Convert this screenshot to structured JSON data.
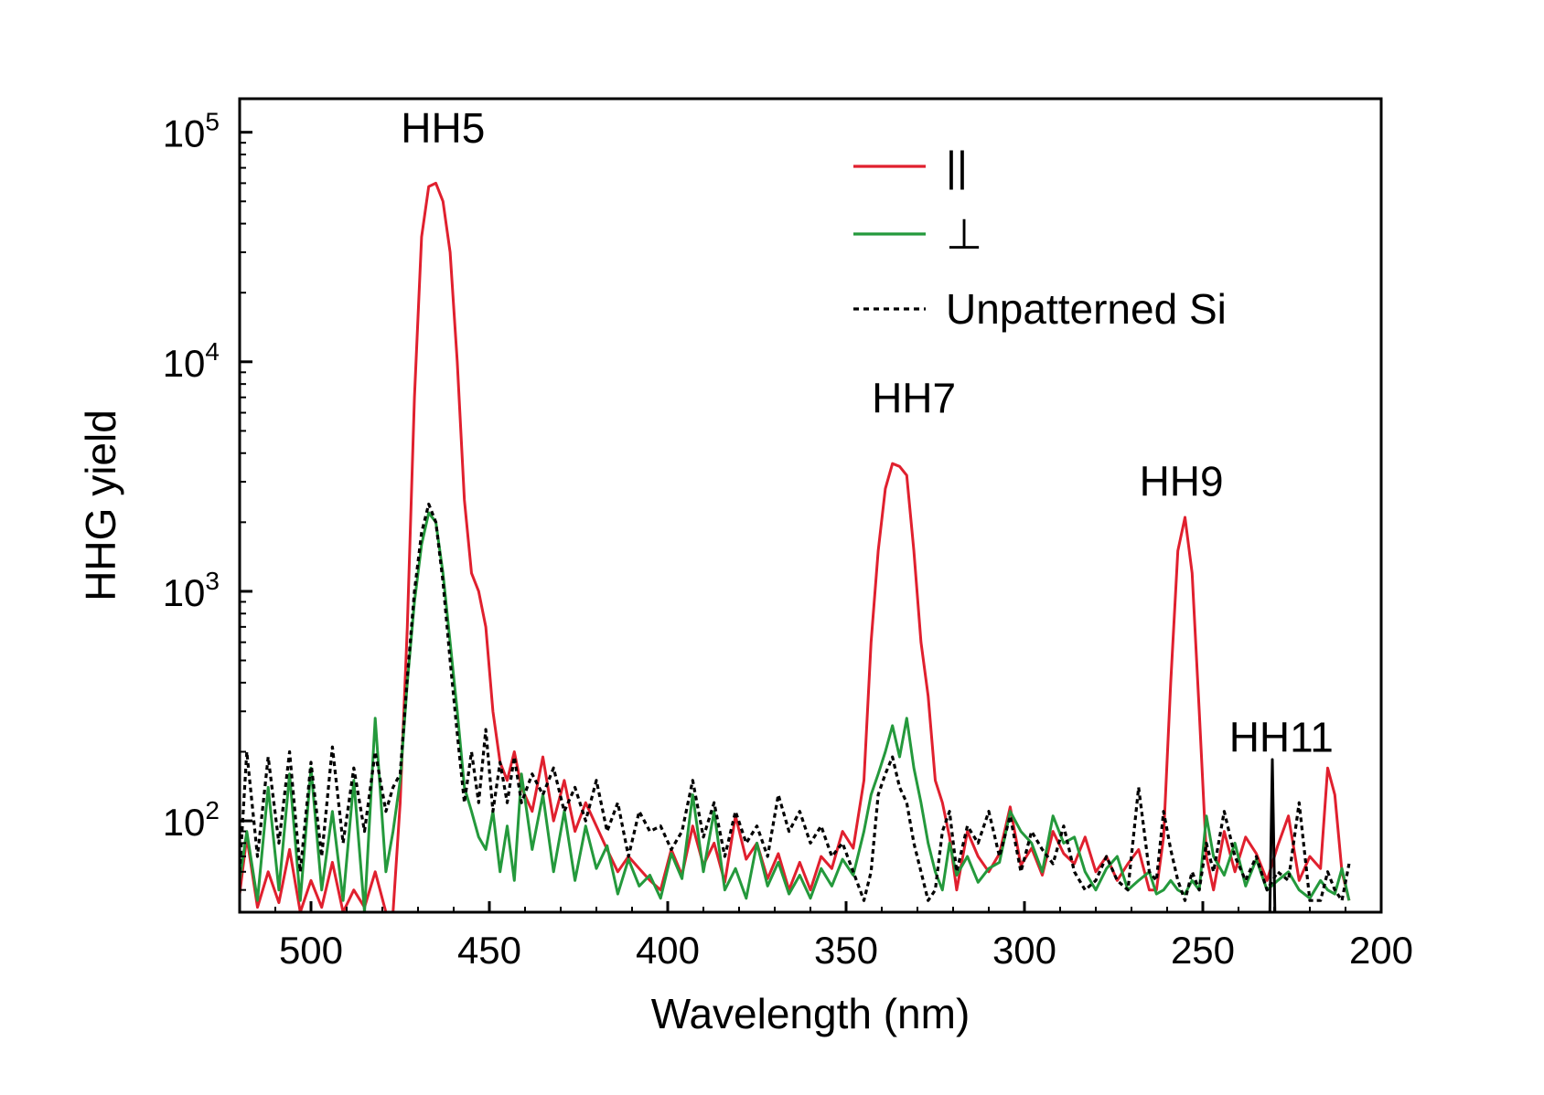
{
  "chart_data": {
    "type": "line",
    "xlabel": "Wavelength (nm)",
    "ylabel": "HHG yield",
    "x_reversed": true,
    "y_scale": "log",
    "xlim": [
      520,
      200
    ],
    "ylim": [
      40,
      140000
    ],
    "x_ticks": [
      500,
      450,
      400,
      350,
      300,
      250,
      200
    ],
    "y_ticks": [
      {
        "value": 100,
        "base": "10",
        "exp": "2"
      },
      {
        "value": 1000,
        "base": "10",
        "exp": "3"
      },
      {
        "value": 10000,
        "base": "10",
        "exp": "4"
      },
      {
        "value": 100000,
        "base": "10",
        "exp": "5"
      }
    ],
    "legend_position": "top-right",
    "annotations": [
      {
        "text": "HH5",
        "x": 463,
        "y": 90000
      },
      {
        "text": "HH7",
        "x": 331,
        "y": 6000
      },
      {
        "text": "HH9",
        "x": 256,
        "y": 2600
      },
      {
        "text": "HH11",
        "x": 228,
        "y": 200
      }
    ],
    "series": [
      {
        "name": "||",
        "color": "#e0202e",
        "dash": "solid",
        "x": [
          520,
          518,
          515,
          512,
          509,
          506,
          503,
          500,
          497,
          494,
          491,
          488,
          485,
          482,
          479,
          477,
          475,
          473,
          471,
          469,
          467,
          465,
          463,
          461,
          459,
          457,
          455,
          453,
          451,
          449,
          447,
          445,
          443,
          441,
          438,
          435,
          432,
          429,
          426,
          423,
          420,
          417,
          414,
          411,
          408,
          405,
          402,
          399,
          396,
          393,
          390,
          387,
          384,
          381,
          378,
          375,
          372,
          369,
          366,
          363,
          360,
          357,
          354,
          351,
          348,
          345,
          343,
          341,
          339,
          337,
          335,
          333,
          331,
          329,
          327,
          325,
          323,
          321,
          319,
          316,
          313,
          310,
          307,
          304,
          301,
          298,
          295,
          292,
          289,
          286,
          283,
          280,
          277,
          274,
          271,
          268,
          265,
          263,
          261,
          259,
          257,
          255,
          253,
          251,
          249,
          247,
          244,
          241,
          238,
          235,
          232,
          229,
          226,
          223,
          220,
          217,
          215,
          213,
          211,
          209
        ],
        "values": [
          48,
          85,
          42,
          60,
          44,
          75,
          40,
          55,
          42,
          66,
          40,
          50,
          42,
          60,
          40,
          40,
          120,
          700,
          7000,
          35000,
          58000,
          60000,
          50000,
          30000,
          10000,
          2500,
          1200,
          1000,
          700,
          300,
          180,
          150,
          200,
          140,
          110,
          190,
          100,
          150,
          90,
          120,
          95,
          75,
          60,
          70,
          62,
          55,
          50,
          75,
          58,
          95,
          64,
          80,
          54,
          105,
          68,
          80,
          56,
          72,
          50,
          66,
          50,
          70,
          62,
          90,
          76,
          150,
          600,
          1500,
          2800,
          3600,
          3500,
          3200,
          1500,
          600,
          350,
          150,
          120,
          85,
          50,
          90,
          70,
          60,
          72,
          115,
          64,
          76,
          58,
          90,
          72,
          65,
          85,
          60,
          70,
          55,
          65,
          75,
          50,
          50,
          85,
          400,
          1500,
          2100,
          1200,
          300,
          70,
          50,
          90,
          60,
          85,
          72,
          55,
          78,
          105,
          55,
          70,
          62,
          170,
          130,
          60,
          45
        ]
      },
      {
        "name": "⊥",
        "color": "#24993c",
        "dash": "solid",
        "x": [
          520,
          518,
          515,
          512,
          509,
          506,
          503,
          500,
          497,
          494,
          491,
          488,
          485,
          482,
          479,
          477,
          475,
          473,
          471,
          469,
          467,
          465,
          463,
          461,
          459,
          457,
          455,
          453,
          451,
          449,
          447,
          445,
          443,
          441,
          438,
          435,
          432,
          429,
          426,
          423,
          420,
          417,
          414,
          411,
          408,
          405,
          402,
          399,
          396,
          393,
          390,
          387,
          384,
          381,
          378,
          375,
          372,
          369,
          366,
          363,
          360,
          357,
          354,
          351,
          348,
          345,
          343,
          341,
          339,
          337,
          335,
          333,
          331,
          329,
          327,
          325,
          323,
          321,
          319,
          316,
          313,
          310,
          307,
          304,
          301,
          298,
          295,
          292,
          289,
          286,
          283,
          280,
          277,
          274,
          271,
          268,
          265,
          263,
          261,
          259,
          257,
          255,
          253,
          251,
          249,
          247,
          244,
          241,
          238,
          235,
          232,
          229,
          226,
          223,
          220,
          217,
          215,
          213,
          211,
          209
        ],
        "values": [
          55,
          90,
          45,
          140,
          50,
          160,
          45,
          170,
          50,
          110,
          45,
          150,
          40,
          280,
          60,
          90,
          150,
          400,
          900,
          1600,
          2200,
          2000,
          1200,
          600,
          300,
          140,
          110,
          85,
          75,
          110,
          60,
          95,
          55,
          160,
          75,
          130,
          60,
          110,
          55,
          95,
          62,
          78,
          48,
          68,
          52,
          58,
          46,
          72,
          56,
          130,
          60,
          110,
          50,
          62,
          46,
          80,
          52,
          66,
          48,
          58,
          46,
          62,
          52,
          68,
          58,
          90,
          130,
          160,
          200,
          260,
          190,
          280,
          170,
          120,
          80,
          60,
          50,
          80,
          58,
          70,
          54,
          62,
          66,
          110,
          90,
          80,
          60,
          105,
          80,
          85,
          60,
          50,
          62,
          70,
          50,
          55,
          60,
          48,
          50,
          55,
          50,
          48,
          55,
          50,
          105,
          70,
          58,
          80,
          52,
          68,
          50,
          55,
          60,
          50,
          46,
          55,
          50,
          48,
          62,
          45
        ]
      },
      {
        "name": "Unpatterned Si",
        "color": "#000000",
        "dash": "dotted",
        "x": [
          520,
          518,
          515,
          512,
          509,
          506,
          503,
          500,
          497,
          494,
          491,
          488,
          485,
          482,
          479,
          477,
          475,
          473,
          471,
          469,
          467,
          465,
          463,
          461,
          459,
          457,
          455,
          453,
          451,
          449,
          447,
          445,
          443,
          441,
          438,
          435,
          432,
          429,
          426,
          423,
          420,
          417,
          414,
          411,
          408,
          405,
          402,
          399,
          396,
          393,
          390,
          387,
          384,
          381,
          378,
          375,
          372,
          369,
          366,
          363,
          360,
          357,
          354,
          351,
          348,
          345,
          343,
          341,
          339,
          337,
          335,
          333,
          331,
          329,
          327,
          325,
          323,
          321,
          319,
          316,
          313,
          310,
          307,
          304,
          301,
          298,
          295,
          292,
          289,
          286,
          283,
          280,
          277,
          274,
          271,
          268,
          265,
          263,
          261,
          259,
          257,
          255,
          253,
          251,
          249,
          247,
          244,
          241,
          238,
          235,
          232,
          229,
          226,
          223,
          220,
          217,
          215,
          213,
          211,
          209
        ],
        "values": [
          60,
          200,
          70,
          190,
          80,
          200,
          60,
          180,
          70,
          210,
          80,
          170,
          90,
          200,
          110,
          140,
          160,
          420,
          1000,
          1800,
          2400,
          2000,
          1100,
          500,
          240,
          120,
          200,
          120,
          250,
          110,
          180,
          120,
          190,
          120,
          160,
          130,
          170,
          110,
          140,
          100,
          150,
          90,
          120,
          70,
          110,
          90,
          95,
          75,
          90,
          150,
          85,
          120,
          70,
          110,
          80,
          95,
          70,
          130,
          90,
          110,
          80,
          95,
          70,
          80,
          60,
          45,
          60,
          130,
          160,
          190,
          140,
          120,
          80,
          60,
          45,
          50,
          90,
          110,
          60,
          95,
          80,
          110,
          70,
          105,
          60,
          90,
          75,
          65,
          95,
          60,
          50,
          55,
          70,
          55,
          50,
          140,
          60,
          55,
          110,
          75,
          55,
          45,
          60,
          50,
          80,
          60,
          110,
          70,
          55,
          70,
          50,
          60,
          55,
          120,
          45,
          45,
          60,
          50,
          45,
          65
        ]
      },
      {
        "name": "",
        "color": "#000000",
        "dash": "solid",
        "x": [
          231.2,
          230.5,
          229.8
        ],
        "values": [
          40,
          185,
          40
        ]
      }
    ]
  }
}
